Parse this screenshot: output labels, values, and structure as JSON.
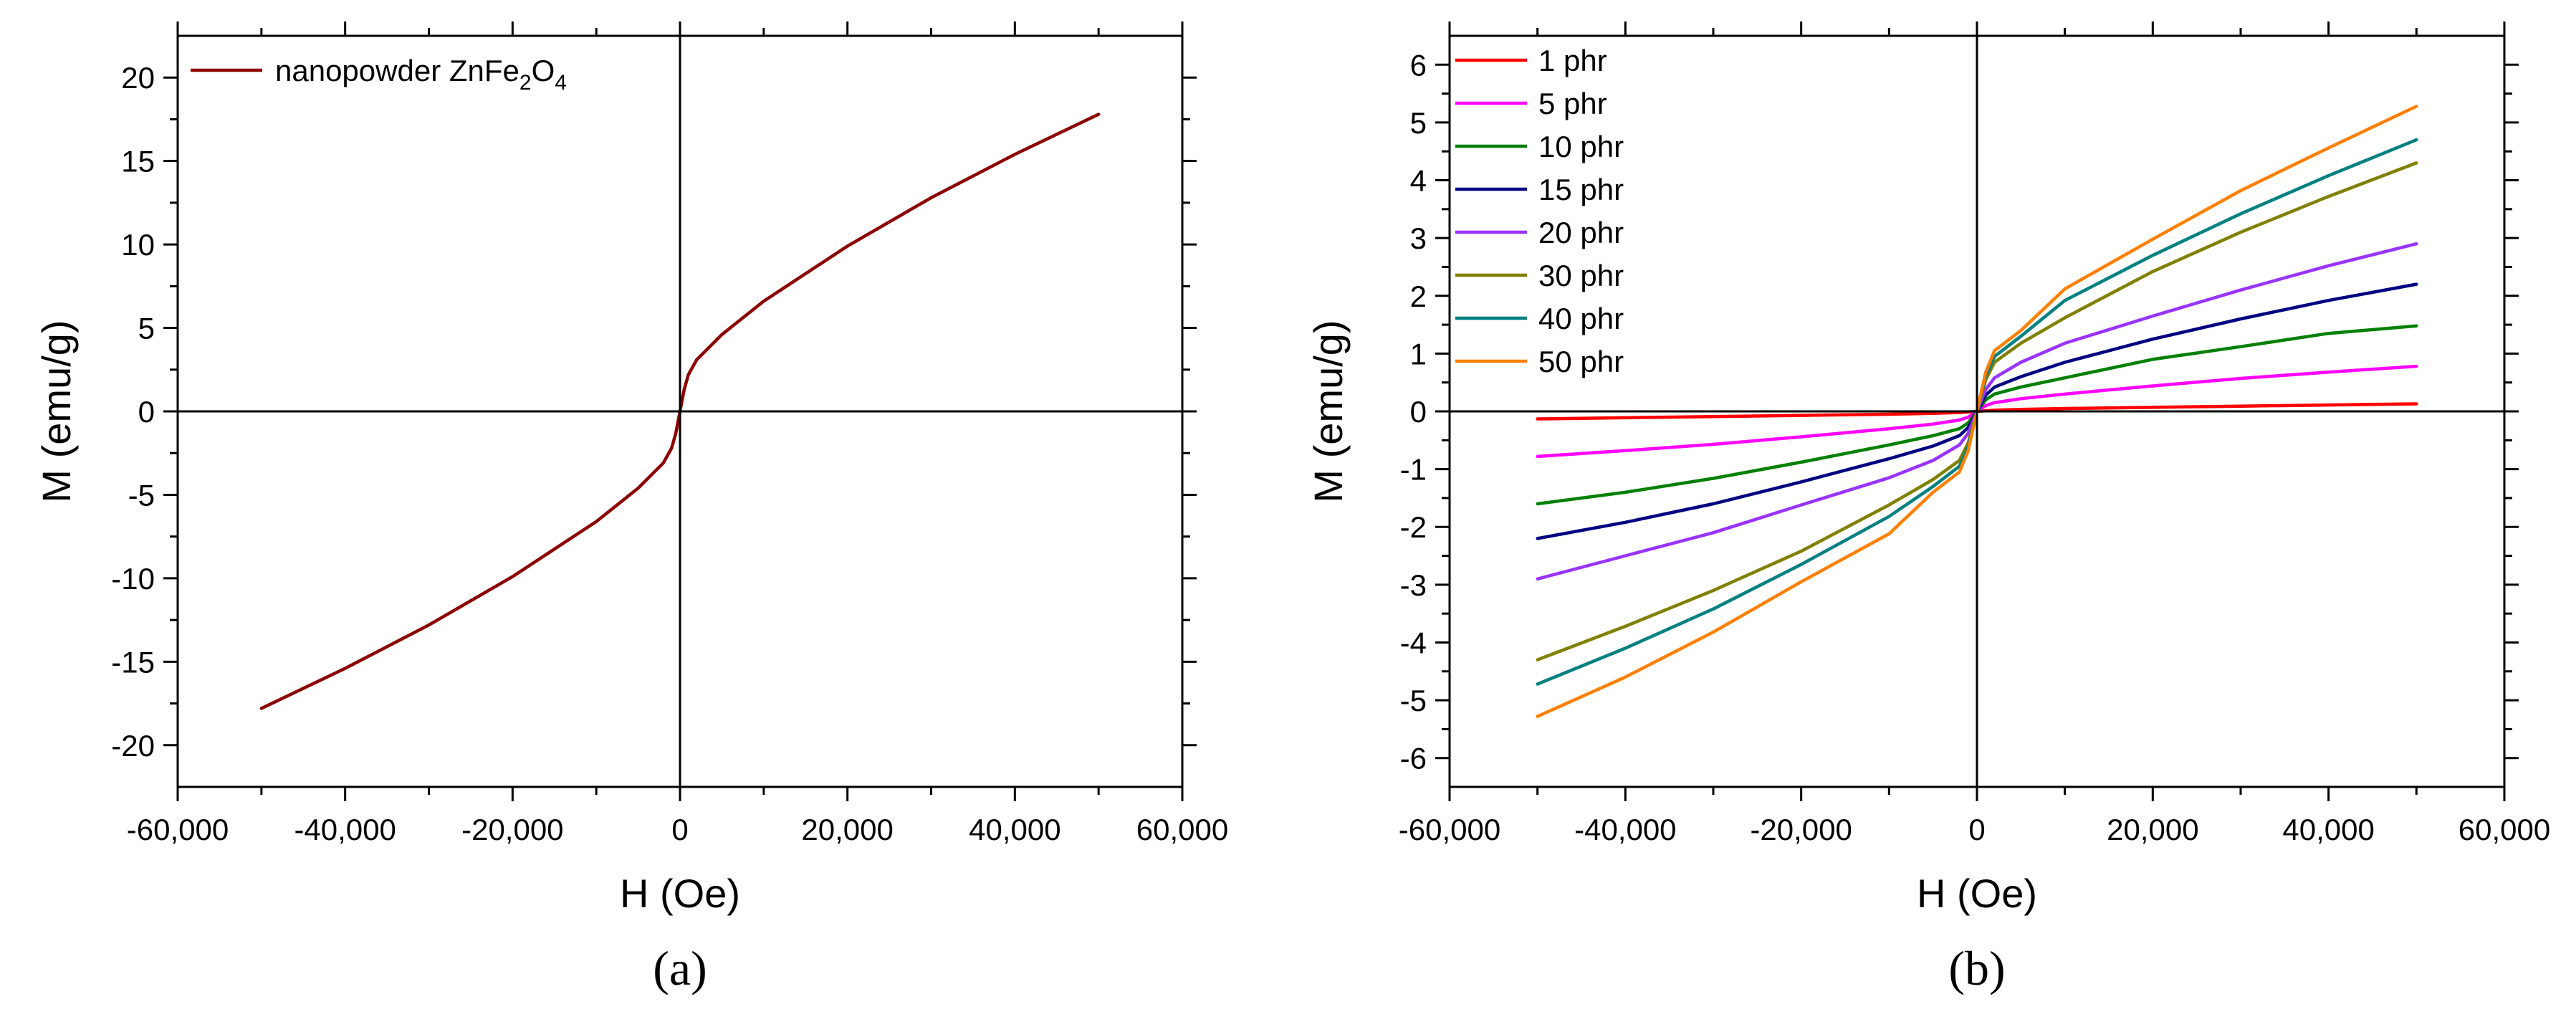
{
  "chart_data": [
    {
      "type": "line",
      "panel_label": "(a)",
      "xlabel": "H (Oe)",
      "ylabel": "M (emu/g)",
      "xlim": [
        -60000,
        60000
      ],
      "ylim": [
        -22.5,
        22.5
      ],
      "xticks": [
        -60000,
        -40000,
        -20000,
        0,
        20000,
        40000,
        60000
      ],
      "xtick_labels": [
        "-60,000",
        "-40,000",
        "-20,000",
        "0",
        "20,000",
        "40,000",
        "60,000"
      ],
      "yticks": [
        -20,
        -15,
        -10,
        -5,
        0,
        5,
        10,
        15,
        20
      ],
      "ytick_labels": [
        "-20",
        "-15",
        "-10",
        "-5",
        "0",
        "5",
        "10",
        "15",
        "20"
      ],
      "grid": false,
      "legend_position": "top-left",
      "series": [
        {
          "name": "nanopowder ZnFe",
          "name_sub1": "2",
          "name_mid": "O",
          "name_sub2": "4",
          "color": "#8B0000",
          "x": [
            -50000,
            -40000,
            -30000,
            -20000,
            -10000,
            -5000,
            -3000,
            -2000,
            -1000,
            -500,
            0,
            500,
            1000,
            2000,
            3000,
            5000,
            10000,
            20000,
            30000,
            40000,
            50000
          ],
          "y": [
            -17.8,
            -15.4,
            -12.8,
            -9.9,
            -6.6,
            -4.6,
            -3.6,
            -3.1,
            -2.2,
            -1.3,
            0,
            1.3,
            2.2,
            3.1,
            3.6,
            4.6,
            6.6,
            9.9,
            12.8,
            15.4,
            17.8
          ]
        }
      ]
    },
    {
      "type": "line",
      "panel_label": "(b)",
      "xlabel": "H (Oe)",
      "ylabel": "M (emu/g)",
      "xlim": [
        -60000,
        60000
      ],
      "ylim": [
        -6.5,
        6.5
      ],
      "xticks": [
        -60000,
        -40000,
        -20000,
        0,
        20000,
        40000,
        60000
      ],
      "xtick_labels": [
        "-60,000",
        "-40,000",
        "-20,000",
        "0",
        "20,000",
        "40,000",
        "60,000"
      ],
      "yticks": [
        -6,
        -5,
        -4,
        -3,
        -2,
        -1,
        0,
        1,
        2,
        3,
        4,
        5,
        6
      ],
      "ytick_labels": [
        "-6",
        "-5",
        "-4",
        "-3",
        "-2",
        "-1",
        "0",
        "1",
        "2",
        "3",
        "4",
        "5",
        "6"
      ],
      "grid": false,
      "legend_position": "top-left",
      "x": [
        -50000,
        -40000,
        -30000,
        -20000,
        -10000,
        -5000,
        -2000,
        -1000,
        0,
        1000,
        2000,
        5000,
        10000,
        20000,
        30000,
        40000,
        50000
      ],
      "series": [
        {
          "name": "1 phr",
          "color": "#FF0000",
          "values": [
            -0.13,
            -0.11,
            -0.09,
            -0.07,
            -0.05,
            -0.035,
            -0.02,
            -0.01,
            0,
            0.01,
            0.02,
            0.035,
            0.05,
            0.07,
            0.09,
            0.11,
            0.13
          ]
        },
        {
          "name": "5 phr",
          "color": "#FF00FF",
          "values": [
            -0.78,
            -0.68,
            -0.57,
            -0.44,
            -0.3,
            -0.22,
            -0.15,
            -0.1,
            0,
            0.1,
            0.15,
            0.22,
            0.3,
            0.44,
            0.57,
            0.68,
            0.78
          ]
        },
        {
          "name": "10 phr",
          "color": "#008000",
          "values": [
            -1.6,
            -1.4,
            -1.16,
            -0.88,
            -0.58,
            -0.42,
            -0.3,
            -0.2,
            0,
            0.2,
            0.3,
            0.42,
            0.58,
            0.9,
            1.12,
            1.35,
            1.48
          ]
        },
        {
          "name": "15 phr",
          "color": "#000080",
          "values": [
            -2.2,
            -1.92,
            -1.6,
            -1.22,
            -0.82,
            -0.6,
            -0.42,
            -0.28,
            0,
            0.28,
            0.42,
            0.6,
            0.85,
            1.25,
            1.6,
            1.92,
            2.2
          ]
        },
        {
          "name": "20 phr",
          "color": "#9933FF",
          "values": [
            -2.9,
            -2.5,
            -2.1,
            -1.62,
            -1.15,
            -0.85,
            -0.58,
            -0.38,
            0,
            0.38,
            0.58,
            0.85,
            1.18,
            1.65,
            2.1,
            2.52,
            2.9
          ]
        },
        {
          "name": "30 phr",
          "color": "#808000",
          "values": [
            -4.3,
            -3.72,
            -3.1,
            -2.42,
            -1.62,
            -1.18,
            -0.85,
            -0.55,
            0,
            0.55,
            0.85,
            1.18,
            1.62,
            2.42,
            3.1,
            3.72,
            4.3
          ]
        },
        {
          "name": "40 phr",
          "color": "#008080",
          "values": [
            -4.72,
            -4.1,
            -3.42,
            -2.65,
            -1.82,
            -1.3,
            -0.95,
            -0.62,
            0,
            0.62,
            0.95,
            1.3,
            1.92,
            2.7,
            3.42,
            4.08,
            4.7
          ]
        },
        {
          "name": "50 phr",
          "color": "#FF8000",
          "values": [
            -5.28,
            -4.6,
            -3.82,
            -2.95,
            -2.12,
            -1.4,
            -1.05,
            -0.68,
            0,
            0.68,
            1.05,
            1.4,
            2.12,
            2.98,
            3.82,
            4.56,
            5.28
          ]
        }
      ]
    }
  ]
}
